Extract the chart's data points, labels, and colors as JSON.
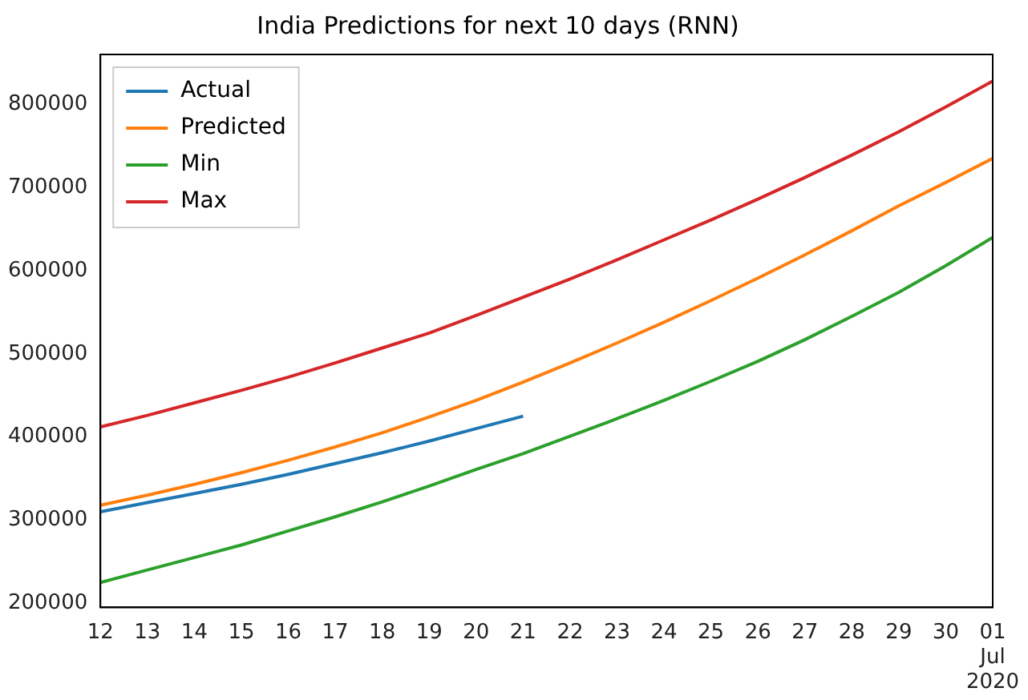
{
  "chart_data": {
    "type": "line",
    "title": "India Predictions for next 10 days (RNN)",
    "x": [
      "2020-06-12",
      "2020-06-13",
      "2020-06-14",
      "2020-06-15",
      "2020-06-16",
      "2020-06-17",
      "2020-06-18",
      "2020-06-19",
      "2020-06-20",
      "2020-06-21",
      "2020-06-22",
      "2020-06-23",
      "2020-06-24",
      "2020-06-25",
      "2020-06-26",
      "2020-06-27",
      "2020-06-28",
      "2020-06-29",
      "2020-06-30",
      "2020-07-01"
    ],
    "series": [
      {
        "name": "Actual",
        "color": "#1f77b4",
        "values": [
          310000,
          321000,
          332000,
          343000,
          355000,
          368000,
          381000,
          395000,
          410000,
          425000,
          null,
          null,
          null,
          null,
          null,
          null,
          null,
          null,
          null,
          null
        ]
      },
      {
        "name": "Predicted",
        "color": "#ff7f0e",
        "values": [
          318000,
          330000,
          343000,
          357000,
          372000,
          388000,
          405000,
          424000,
          444000,
          466000,
          489000,
          513000,
          538000,
          564000,
          591000,
          619000,
          648000,
          678000,
          706000,
          735000
        ]
      },
      {
        "name": "Min",
        "color": "#2ca02c",
        "values": [
          225000,
          240000,
          255000,
          270000,
          287000,
          304000,
          322000,
          341000,
          361000,
          380000,
          401000,
          422000,
          444000,
          467000,
          491000,
          517000,
          545000,
          574000,
          606000,
          640000
        ]
      },
      {
        "name": "Max",
        "color": "#d62728",
        "values": [
          412000,
          426000,
          441000,
          456000,
          472000,
          489000,
          507000,
          525000,
          546000,
          568000,
          590000,
          613000,
          637000,
          661000,
          686000,
          712000,
          739000,
          767000,
          797000,
          828000
        ]
      }
    ],
    "xlim": [
      "2020-06-12",
      "2020-07-01"
    ],
    "xticks": [
      {
        "value": "2020-06-12",
        "label": "12"
      },
      {
        "value": "2020-06-13",
        "label": "13"
      },
      {
        "value": "2020-06-14",
        "label": "14"
      },
      {
        "value": "2020-06-15",
        "label": "15"
      },
      {
        "value": "2020-06-16",
        "label": "16"
      },
      {
        "value": "2020-06-17",
        "label": "17"
      },
      {
        "value": "2020-06-18",
        "label": "18"
      },
      {
        "value": "2020-06-19",
        "label": "19"
      },
      {
        "value": "2020-06-20",
        "label": "20"
      },
      {
        "value": "2020-06-21",
        "label": "21"
      },
      {
        "value": "2020-06-22",
        "label": "22"
      },
      {
        "value": "2020-06-23",
        "label": "23"
      },
      {
        "value": "2020-06-24",
        "label": "24"
      },
      {
        "value": "2020-06-25",
        "label": "25"
      },
      {
        "value": "2020-06-26",
        "label": "26"
      },
      {
        "value": "2020-06-27",
        "label": "27"
      },
      {
        "value": "2020-06-28",
        "label": "28"
      },
      {
        "value": "2020-06-29",
        "label": "29"
      },
      {
        "value": "2020-06-30",
        "label": "30"
      },
      {
        "value": "2020-07-01",
        "label": "01 Jul 2020"
      }
    ],
    "ylim": [
      195000,
      860000
    ],
    "yticks": [
      200000,
      300000,
      400000,
      500000,
      600000,
      700000,
      800000
    ],
    "grid": false,
    "legend": "top left",
    "marker": "none",
    "line_style": "solid"
  }
}
